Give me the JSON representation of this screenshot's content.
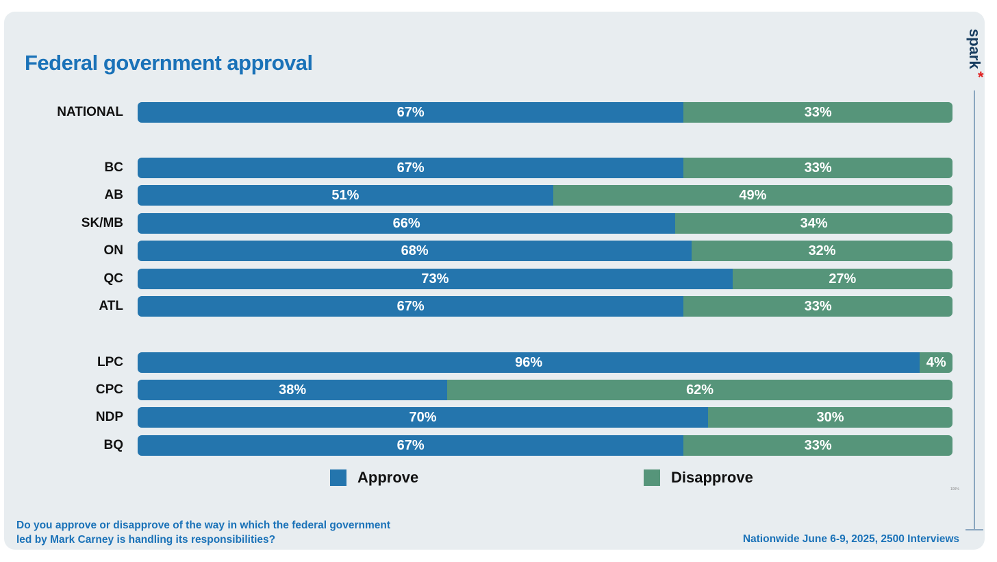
{
  "chart_data": {
    "type": "bar",
    "orientation": "horizontal-stacked-100",
    "title": "Federal government approval",
    "categories": [
      "NATIONAL",
      "BC",
      "AB",
      "SK/MB",
      "ON",
      "QC",
      "ATL",
      "LPC",
      "CPC",
      "NDP",
      "BQ"
    ],
    "series": [
      {
        "name": "Approve",
        "color": "#2475ad",
        "values": [
          67,
          67,
          51,
          66,
          68,
          73,
          67,
          96,
          38,
          70,
          67
        ]
      },
      {
        "name": "Disapprove",
        "color": "#56957a",
        "values": [
          33,
          33,
          49,
          34,
          32,
          27,
          33,
          4,
          62,
          30,
          33
        ]
      }
    ],
    "value_suffix": "%",
    "axis_max_label": "100%",
    "legend": "bottom"
  },
  "footer": {
    "question": "Do you approve or disapprove of the way in which the federal government led by Mark Carney is handling its responsibilities?",
    "source": "Nationwide June 6-9, 2025, 2500 Interviews"
  },
  "logo": {
    "text": "spark",
    "star": "*"
  }
}
